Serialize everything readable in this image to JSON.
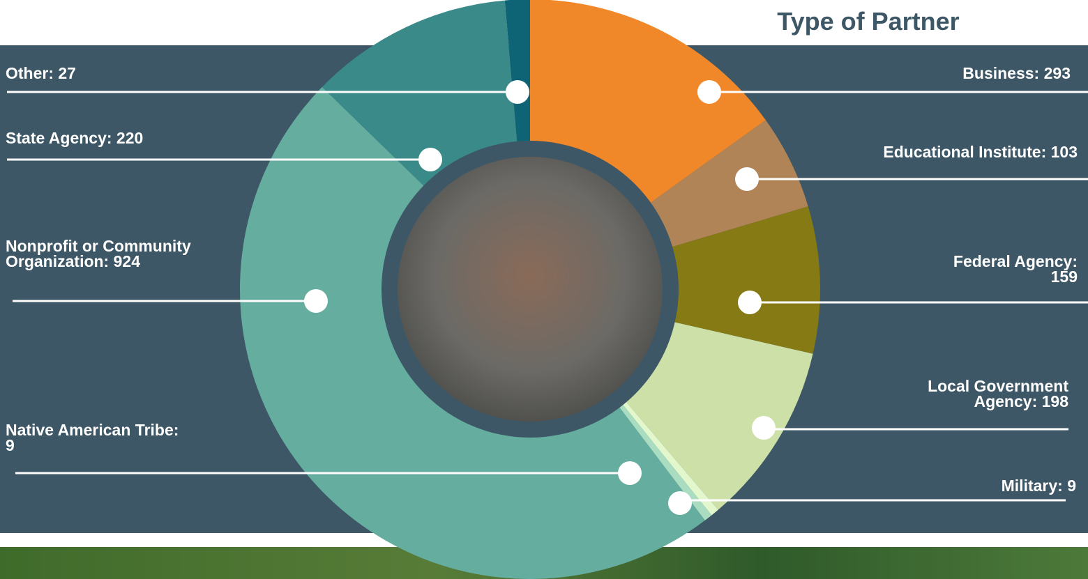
{
  "chart_data": {
    "type": "donut",
    "title": "Type of Partner",
    "value_labels": [
      "Business: 293",
      "Educational Institute: 103",
      "Federal Agency: 159",
      "Local Government Agency: 198",
      "Military: 9",
      "Native American Tribe: 9",
      "Nonprofit or Community Organization: 924",
      "State Agency: 220",
      "Other: 27"
    ],
    "values": [
      293,
      103,
      159,
      198,
      9,
      9,
      924,
      220,
      27
    ],
    "colors": [
      "#f0882a",
      "#b08457",
      "#857a14",
      "#cde0a8",
      "#e2f7cc",
      "#a9dcc0",
      "#65ad9f",
      "#3a8a8a",
      "#0e6475"
    ]
  }
}
